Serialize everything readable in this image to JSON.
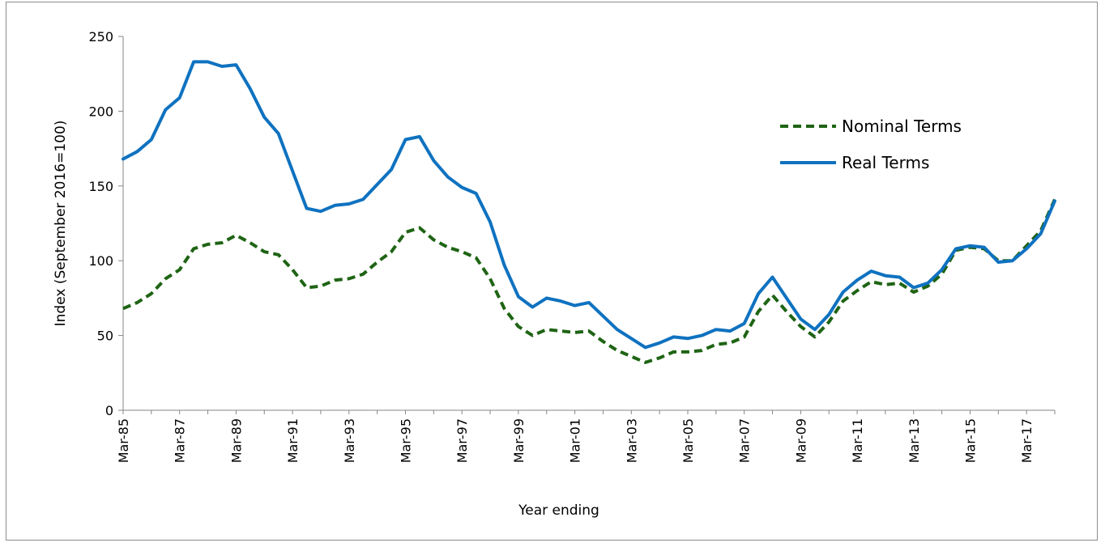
{
  "chart_data": {
    "type": "line",
    "title": "",
    "xlabel": "Year ending",
    "ylabel": "Index (September 2016=100)",
    "ylim": [
      0,
      250
    ],
    "yticks": [
      0,
      50,
      100,
      150,
      200,
      250
    ],
    "grid": false,
    "legend_position": "right",
    "x_tick_labels": [
      "Mar-85",
      "Mar-87",
      "Mar-89",
      "Mar-91",
      "Mar-93",
      "Mar-95",
      "Mar-97",
      "Mar-99",
      "Mar-01",
      "Mar-03",
      "Mar-05",
      "Mar-07",
      "Mar-09",
      "Mar-11",
      "Mar-13",
      "Mar-15",
      "Mar-17"
    ],
    "x": [
      1985.0,
      1985.5,
      1986.0,
      1986.5,
      1987.0,
      1987.5,
      1988.0,
      1988.5,
      1989.0,
      1989.5,
      1990.0,
      1990.5,
      1991.0,
      1991.5,
      1992.0,
      1992.5,
      1993.0,
      1993.5,
      1994.0,
      1994.5,
      1995.0,
      1995.5,
      1996.0,
      1996.5,
      1997.0,
      1997.5,
      1998.0,
      1998.5,
      1999.0,
      1999.5,
      2000.0,
      2000.5,
      2001.0,
      2001.5,
      2002.0,
      2002.5,
      2003.0,
      2003.5,
      2004.0,
      2004.5,
      2005.0,
      2005.5,
      2006.0,
      2006.5,
      2007.0,
      2007.5,
      2008.0,
      2008.5,
      2009.0,
      2009.5,
      2010.0,
      2010.5,
      2011.0,
      2011.5,
      2012.0,
      2012.5,
      2013.0,
      2013.5,
      2014.0,
      2014.5,
      2015.0,
      2015.5,
      2016.0,
      2016.5,
      2017.0,
      2017.5,
      2018.0
    ],
    "series": [
      {
        "name": "Nominal Terms",
        "color": "#1e6414",
        "dash": "dashed",
        "values": [
          68,
          72,
          78,
          88,
          94,
          108,
          111,
          112,
          117,
          112,
          106,
          104,
          94,
          82,
          83,
          87,
          88,
          91,
          99,
          106,
          119,
          122,
          114,
          109,
          106,
          102,
          88,
          68,
          56,
          50,
          54,
          53,
          52,
          53,
          46,
          40,
          36,
          32,
          35,
          39,
          39,
          40,
          44,
          45,
          49,
          66,
          77,
          66,
          56,
          49,
          59,
          73,
          80,
          86,
          84,
          85,
          79,
          83,
          91,
          107,
          109,
          108,
          100,
          100,
          110,
          120,
          141
        ]
      },
      {
        "name": "Real Terms",
        "color": "#0f72c0",
        "dash": "solid",
        "values": [
          168,
          173,
          181,
          201,
          209,
          233,
          233,
          230,
          231,
          215,
          196,
          185,
          160,
          135,
          133,
          137,
          138,
          141,
          151,
          161,
          181,
          183,
          167,
          156,
          149,
          145,
          126,
          97,
          76,
          69,
          75,
          73,
          70,
          72,
          63,
          54,
          48,
          42,
          45,
          49,
          48,
          50,
          54,
          53,
          58,
          78,
          89,
          75,
          61,
          54,
          64,
          79,
          87,
          93,
          90,
          89,
          82,
          85,
          94,
          108,
          110,
          109,
          99,
          100,
          108,
          118,
          140
        ]
      }
    ]
  }
}
